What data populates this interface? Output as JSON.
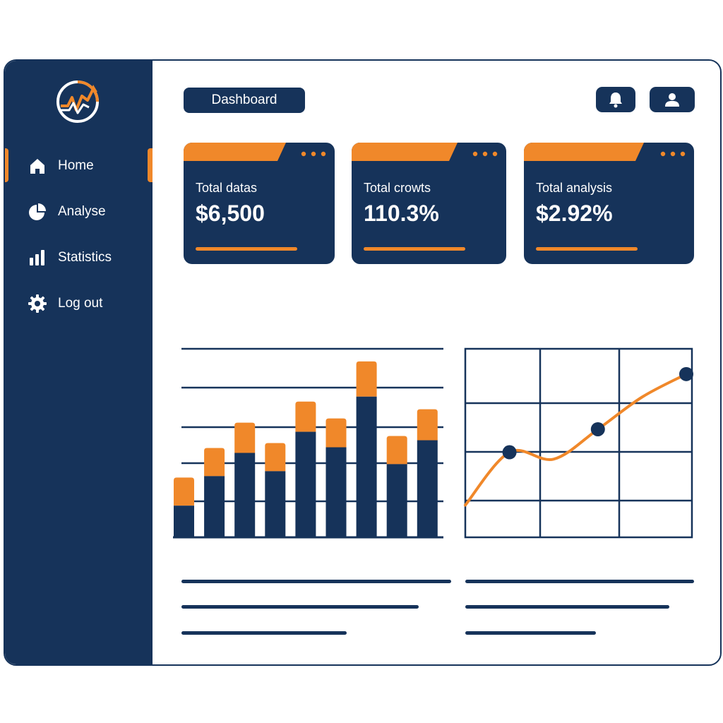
{
  "sidebar": {
    "logo_icon": "trend-arrow-logo-icon",
    "items": [
      {
        "label": "Home",
        "icon": "home-icon",
        "active": true
      },
      {
        "label": "Analyse",
        "icon": "pie-chart-icon",
        "active": false
      },
      {
        "label": "Statistics",
        "icon": "bar-chart-icon",
        "active": false
      },
      {
        "label": "Log out",
        "icon": "gear-icon",
        "active": false
      }
    ]
  },
  "header": {
    "title": "Dashboard",
    "notification_icon": "bell-icon",
    "profile_icon": "user-icon"
  },
  "cards": [
    {
      "label": "Total datas",
      "value": "$6,500"
    },
    {
      "label": "Total crowts",
      "value": "110.3%"
    },
    {
      "label": "Total analysis",
      "value": "$2.92%"
    }
  ],
  "colors": {
    "navy": "#16335a",
    "orange": "#f0882a",
    "background": "#ffffff"
  },
  "chart_data": [
    {
      "type": "bar",
      "stacked": true,
      "categories": [
        "",
        "",
        "",
        "",
        "",
        "",
        "",
        "",
        ""
      ],
      "series": [
        {
          "values": [
            45,
            87,
            120,
            94,
            150,
            128,
            200,
            104,
            138
          ]
        },
        {
          "values": [
            40,
            40,
            43,
            40,
            43,
            41,
            50,
            40,
            44
          ]
        }
      ],
      "ylim": [
        0,
        268
      ],
      "grid": true
    },
    {
      "type": "line",
      "x": [
        0,
        1,
        2,
        3,
        4,
        5
      ],
      "y": [
        0,
        1.15,
        1.0,
        1.65,
        2.35,
        2.85
      ],
      "markers": [
        1,
        3,
        5
      ],
      "ylim": [
        -0.7,
        3.4
      ],
      "grid": true
    }
  ]
}
